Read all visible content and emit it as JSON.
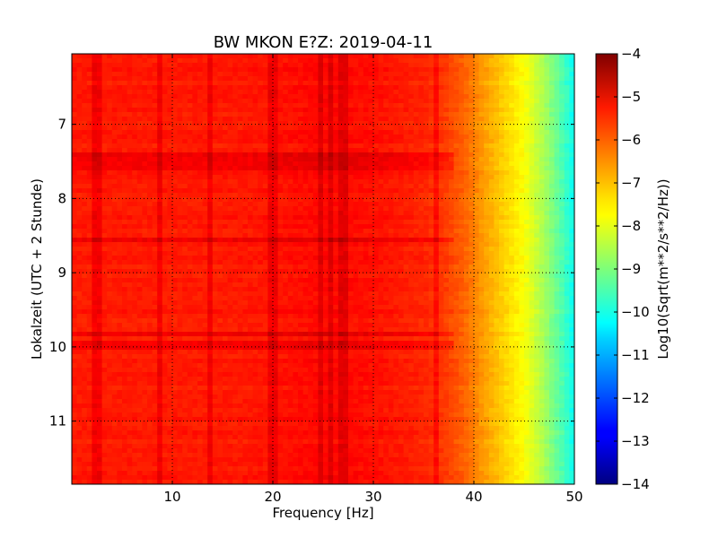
{
  "chart_data": {
    "type": "heatmap",
    "title": "BW MKON E?Z: 2019-04-11",
    "xlabel": "Frequency [Hz]",
    "ylabel": "Lokalzeit (UTC + 2 Stunde)",
    "colorbar_label": "Log10(Sqrt(m**2/s**2/Hz))",
    "xlim": [
      0,
      50
    ],
    "ylim": [
      11.85,
      6.05
    ],
    "y_inverted": true,
    "x_ticks": [
      10,
      20,
      30,
      40,
      50
    ],
    "x_tick_labels": [
      "10",
      "20",
      "30",
      "40",
      "50"
    ],
    "y_ticks": [
      7,
      8,
      9,
      10,
      11
    ],
    "y_tick_labels": [
      "7",
      "8",
      "9",
      "10",
      "11"
    ],
    "colorbar_range": [
      -14,
      -4
    ],
    "colorbar_ticks": [
      -4,
      -5,
      -6,
      -7,
      -8,
      -9,
      -10,
      -11,
      -12,
      -13,
      -14
    ],
    "colorbar_tick_labels": [
      "−4",
      "−5",
      "−6",
      "−7",
      "−8",
      "−9",
      "−10",
      "−11",
      "−12",
      "−13",
      "−14"
    ],
    "colormap": "jet",
    "grid": true,
    "grid_style": "dotted",
    "value_profile": {
      "frequency_hz": [
        0,
        5,
        10,
        15,
        20,
        25,
        30,
        35,
        37,
        39,
        41,
        43,
        45,
        47,
        49,
        50
      ],
      "log10_amplitude": [
        -5.5,
        -5.5,
        -5.5,
        -5.5,
        -5.45,
        -5.3,
        -5.4,
        -5.6,
        -5.8,
        -6.2,
        -6.8,
        -7.3,
        -7.8,
        -8.6,
        -9.6,
        -10.2
      ]
    },
    "spectral_lines_hz": [
      2.5,
      8.8,
      13.8,
      20,
      24.8,
      25.8,
      27,
      36.3
    ],
    "horizontal_bands_hour": [
      7.45,
      7.55,
      8.55,
      9.82,
      9.97
    ]
  }
}
